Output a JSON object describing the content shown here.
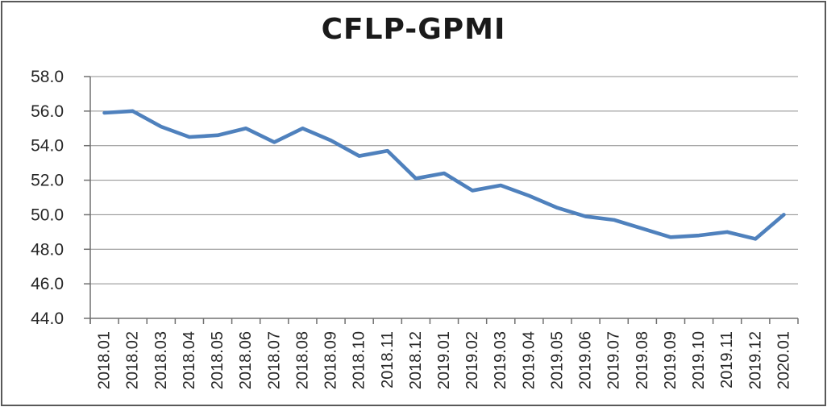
{
  "chart_data": {
    "type": "line",
    "title": "CFLP-GPMI",
    "categories": [
      "2018.01",
      "2018.02",
      "2018.03",
      "2018.04",
      "2018.05",
      "2018.06",
      "2018.07",
      "2018.08",
      "2018.09",
      "2018.10",
      "2018.11",
      "2018.12",
      "2019.01",
      "2019.02",
      "2019.03",
      "2019.04",
      "2019.05",
      "2019.06",
      "2019.07",
      "2019.08",
      "2019.09",
      "2019.10",
      "2019.11",
      "2019.12",
      "2020.01"
    ],
    "series": [
      {
        "name": "CFLP-GPMI",
        "values": [
          55.9,
          56.0,
          55.1,
          54.5,
          54.6,
          55.0,
          54.2,
          55.0,
          54.3,
          53.4,
          53.7,
          52.1,
          52.4,
          51.4,
          51.7,
          51.1,
          50.4,
          49.9,
          49.7,
          49.2,
          48.7,
          48.8,
          49.0,
          48.6,
          50.0
        ]
      }
    ],
    "ylim": [
      44.0,
      58.0
    ],
    "ytick_step": 2.0,
    "ytick_labels": [
      "58.0",
      "56.0",
      "54.0",
      "52.0",
      "50.0",
      "48.0",
      "46.0",
      "44.0"
    ],
    "xlabel": "",
    "ylabel": "",
    "grid": true,
    "legend": "none",
    "x_label_rotation": -90
  },
  "colors": {
    "line": "#4F81BD",
    "gridline": "#8C8C8C",
    "axis": "#707070",
    "tick_text": "#262626",
    "title_text": "#1A1A1A",
    "frame_border": "#595959",
    "background": "#FFFFFF"
  }
}
